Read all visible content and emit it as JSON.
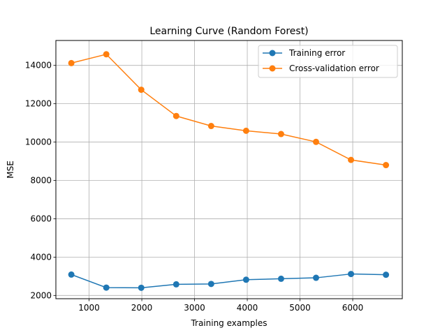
{
  "chart_data": {
    "type": "line",
    "title": "Learning Curve (Random Forest)",
    "xlabel": "Training examples",
    "ylabel": "MSE",
    "xlim": [
      370,
      6940
    ],
    "ylim": [
      1830,
      15300
    ],
    "xticks": [
      1000,
      2000,
      3000,
      4000,
      5000,
      6000
    ],
    "yticks": [
      2000,
      4000,
      6000,
      8000,
      10000,
      12000,
      14000
    ],
    "grid": true,
    "legend_position": "top-right",
    "x": [
      663,
      1326,
      1989,
      2652,
      3315,
      3978,
      4641,
      5304,
      5967,
      6630
    ],
    "series": [
      {
        "name": "Training error",
        "color": "#1f77b4",
        "values": [
          3090,
          2410,
          2400,
          2580,
          2600,
          2820,
          2870,
          2920,
          3120,
          3080
        ]
      },
      {
        "name": "Cross-validation error",
        "color": "#ff7f0e",
        "values": [
          14120,
          14580,
          12730,
          11360,
          10840,
          10590,
          10420,
          10010,
          9070,
          8800
        ]
      }
    ]
  }
}
